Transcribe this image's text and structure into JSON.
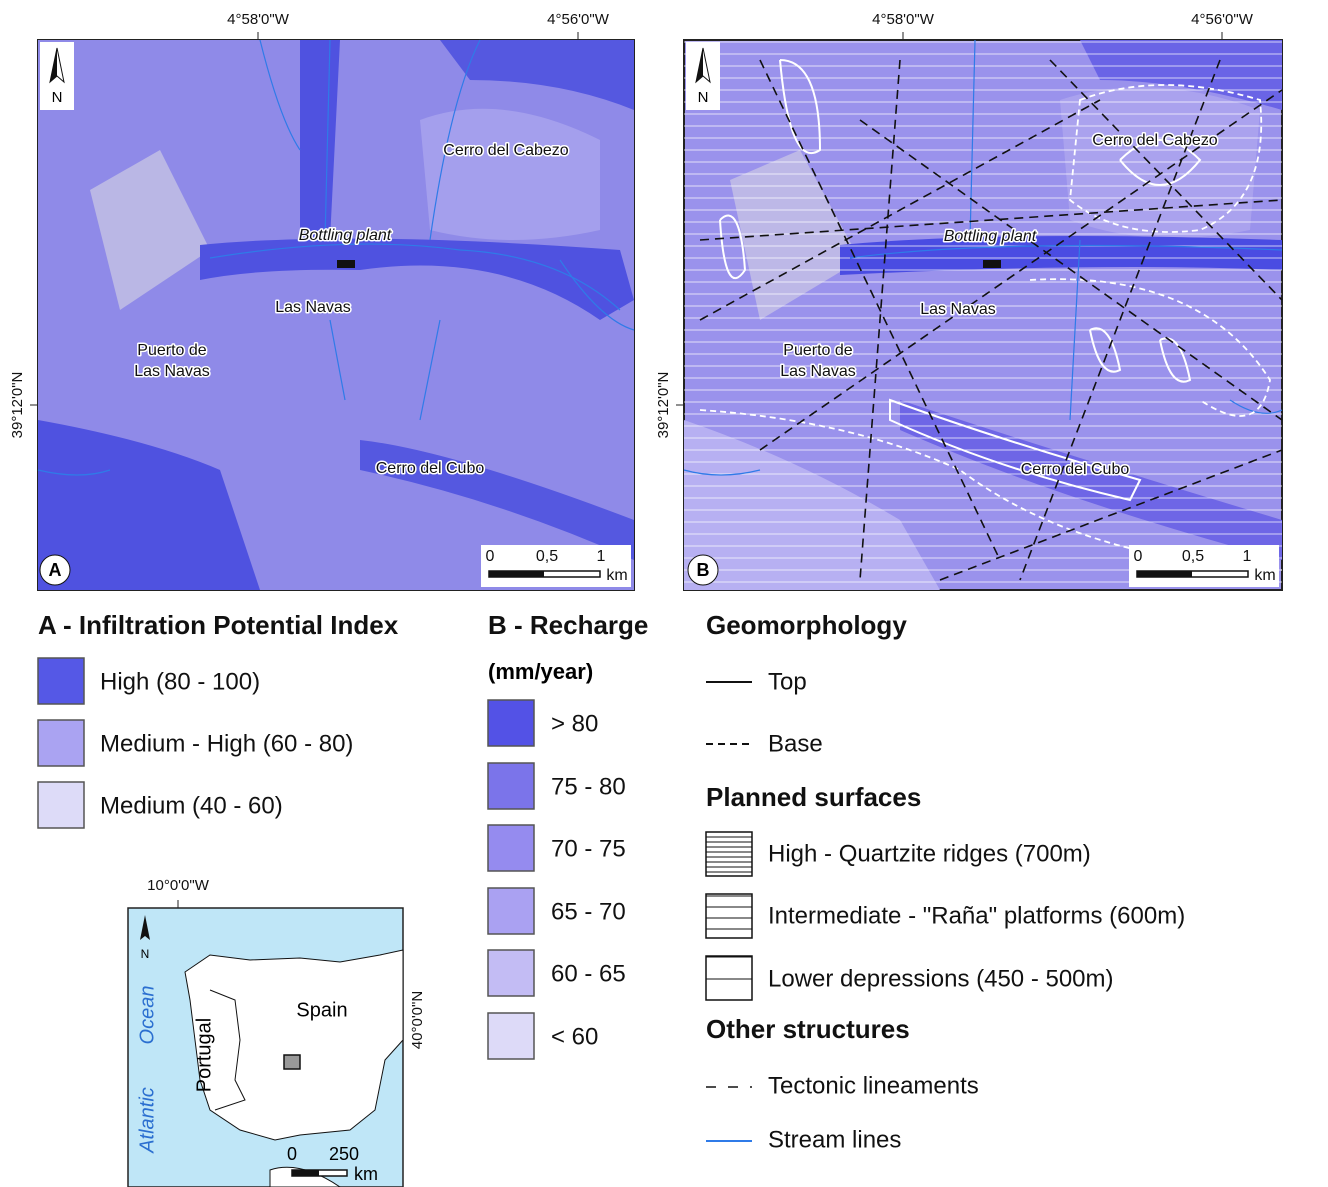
{
  "panel_a": {
    "letter": "A",
    "lon_ticks": [
      "4°58'0\"W",
      "4°56'0\"W"
    ],
    "lat_tick": "39°12'0\"N",
    "north": "N",
    "labels": [
      "Cerro del Cabezo",
      "Bottling plant",
      "Las Navas",
      "Puerto de",
      "Las Navas",
      "Cerro del Cubo"
    ],
    "scale": [
      "0",
      "0,5",
      "1"
    ],
    "scale_unit": "km"
  },
  "panel_b": {
    "letter": "B",
    "lon_ticks": [
      "4°58'0\"W",
      "4°56'0\"W"
    ],
    "lat_tick": "39°12'0\"N",
    "north": "N",
    "labels": [
      "Cerro del Cabezo",
      "Bottling plant",
      "Las Navas",
      "Puerto de",
      "Las Navas",
      "Cerro del Cubo"
    ],
    "scale": [
      "0",
      "0,5",
      "1"
    ],
    "scale_unit": "km"
  },
  "legend_a": {
    "title": "A - Infiltration Potential Index",
    "items": [
      "High (80 - 100)",
      "Medium - High (60 - 80)",
      "Medium (40 - 60)"
    ]
  },
  "legend_b": {
    "title": "B - Recharge",
    "unit": "(mm/year)",
    "items": [
      "> 80",
      "75 - 80",
      "70 - 75",
      "65 - 70",
      "60 - 65",
      "< 60"
    ]
  },
  "legend_geo": {
    "geomorphology": {
      "title": "Geomorphology",
      "items": [
        "Top",
        "Base"
      ]
    },
    "planned": {
      "title": "Planned surfaces",
      "items": [
        "High - Quartzite ridges (700m)",
        "Intermediate - \"Raña\" platforms (600m)",
        "Lower depressions (450 - 500m)"
      ]
    },
    "other": {
      "title": "Other structures",
      "items": [
        "Tectonic lineaments",
        "Stream lines"
      ]
    }
  },
  "inset": {
    "lon_tick": "10°0'0\"W",
    "lat_tick": "40°0'0\"N",
    "north": "N",
    "countries": [
      "Spain",
      "Portugal"
    ],
    "ocean": [
      "Atlantic",
      "Ocean"
    ],
    "scale": [
      "0",
      "250"
    ],
    "scale_unit": "km"
  }
}
